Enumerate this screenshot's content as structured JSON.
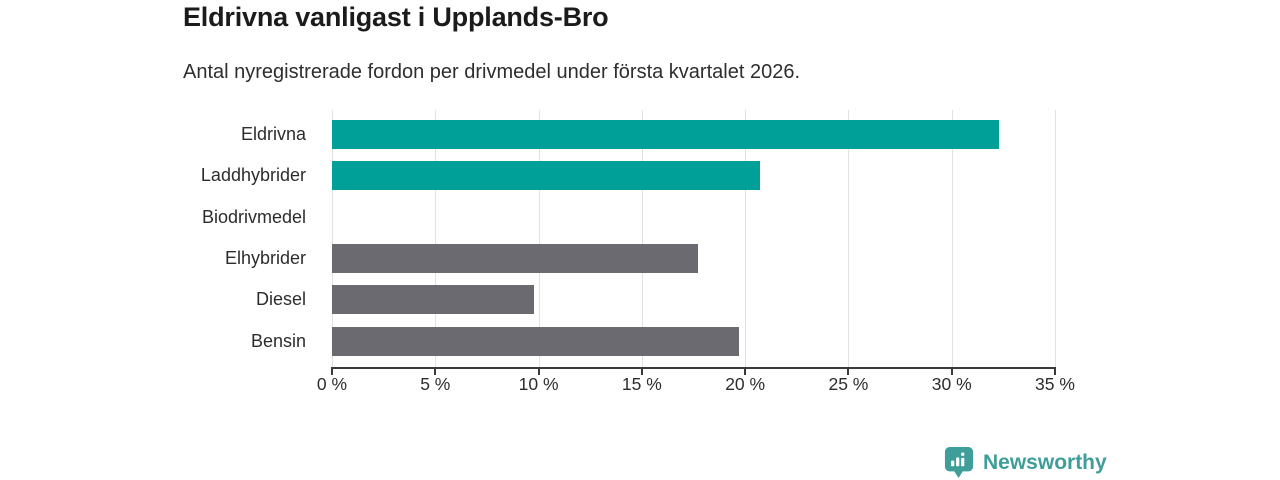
{
  "header": {
    "title": "Eldrivna vanligast i Upplands-Bro",
    "subtitle": "Antal nyregistrerade fordon per drivmedel under första kvartalet 2026."
  },
  "chart_data": {
    "type": "bar",
    "orientation": "horizontal",
    "title": "Eldrivna vanligast i Upplands-Bro",
    "subtitle": "Antal nyregistrerade fordon per drivmedel under första kvartalet 2026.",
    "categories": [
      "Eldrivna",
      "Laddhybrider",
      "Biodrivmedel",
      "Elhybrider",
      "Diesel",
      "Bensin"
    ],
    "values": [
      32.3,
      20.7,
      0,
      17.7,
      9.8,
      19.7
    ],
    "unit": "%",
    "xlim": [
      0,
      35
    ],
    "x_ticks": [
      0,
      5,
      10,
      15,
      20,
      25,
      30,
      35
    ],
    "x_tick_labels": [
      "0 %",
      "5 %",
      "10 %",
      "15 %",
      "20 %",
      "25 %",
      "30 %",
      "35 %"
    ],
    "bar_colors": [
      "#00a099",
      "#00a099",
      "#6a6a70",
      "#6a6a70",
      "#6a6a70",
      "#6a6a70"
    ],
    "grid": "vertical",
    "legend": "none"
  },
  "branding": {
    "logo_text": "Newsworthy",
    "logo_icon": "newsworthy-chart-bubble-icon",
    "logo_color": "#3f9e99"
  },
  "colors": {
    "accent_teal": "#00a099",
    "bar_gray": "#6a6a70",
    "gridline": "#e2e2e2",
    "axis": "#3a3a3a"
  }
}
